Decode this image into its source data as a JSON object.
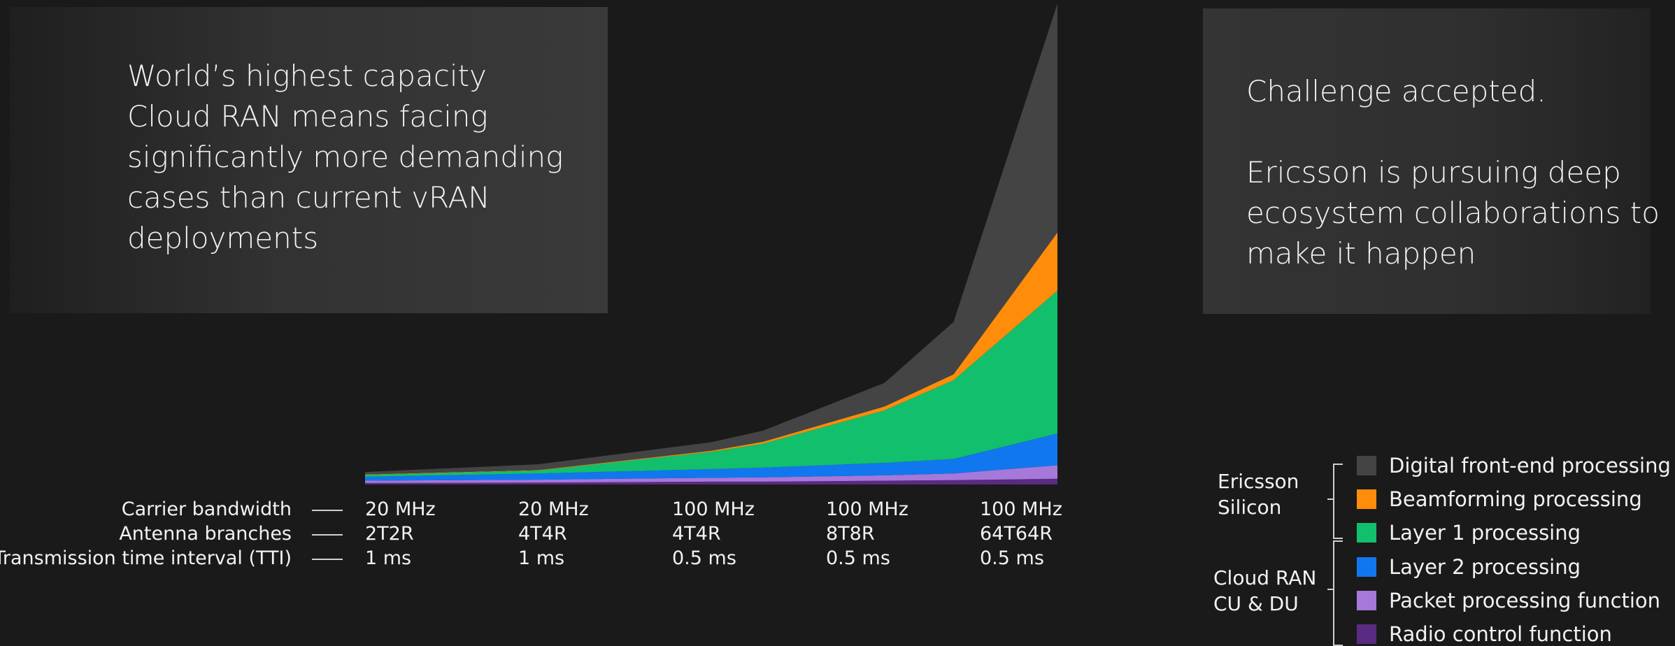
{
  "left_panel": {
    "text": "World’s highest capacity\nCloud RAN means facing\nsignificantly more demanding\ncases than current vRAN\ndeployments"
  },
  "right_panel": {
    "text1": "Challenge accepted.",
    "text2": "Ericsson is pursuing deep\necosystem collaborations to\nmake it happen"
  },
  "table": {
    "rows": [
      {
        "label": "Carrier bandwidth",
        "values": [
          "20 MHz",
          "20 MHz",
          "100 MHz",
          "100 MHz",
          "100 MHz"
        ]
      },
      {
        "label": "Antenna branches",
        "values": [
          "2T2R",
          "4T4R",
          "4T4R",
          "8T8R",
          "64T64R"
        ]
      },
      {
        "label": "Transmission time interval (TTI)",
        "values": [
          "1 ms",
          "1 ms",
          "0.5 ms",
          "0.5 ms",
          "0.5 ms"
        ]
      }
    ]
  },
  "legend": {
    "groups": [
      {
        "label": "Ericsson\nSilicon"
      },
      {
        "label": "Cloud RAN\nCU & DU"
      }
    ],
    "items": [
      {
        "label": "Digital front-end processing",
        "color": "#444444"
      },
      {
        "label": "Beamforming processing",
        "color": "#ff8c0a"
      },
      {
        "label": "Layer 1 processing",
        "color": "#12bf6c"
      },
      {
        "label": "Layer 2 processing",
        "color": "#1177ee"
      },
      {
        "label": "Packet processing function",
        "color": "#a678d9"
      },
      {
        "label": "Radio control function",
        "color": "#5a2b82"
      }
    ]
  },
  "chart_data": {
    "type": "area",
    "stacked": true,
    "categories": [
      "20 MHz / 2T2R / 1 ms",
      "20 MHz / 4T4R / 1 ms",
      "100 MHz / 4T4R / 0.5 ms",
      "100 MHz / 8T8R / 0.5 ms",
      "100 MHz / 64T64R / 0.5 ms"
    ],
    "x": [
      0,
      1,
      2,
      2.3,
      3,
      3.4,
      4
    ],
    "ylim": [
      0,
      100
    ],
    "series": [
      {
        "name": "Radio control function",
        "color": "#5a2b82",
        "values": [
          0.3,
          0.4,
          0.6,
          0.6,
          0.8,
          0.9,
          1.2
        ]
      },
      {
        "name": "Packet processing function",
        "color": "#a678d9",
        "values": [
          0.5,
          0.6,
          0.8,
          0.9,
          1.1,
          1.4,
          2.8
        ]
      },
      {
        "name": "Layer 2 processing",
        "color": "#1177ee",
        "values": [
          0.8,
          1.3,
          1.8,
          2.0,
          2.6,
          3.0,
          6.6
        ]
      },
      {
        "name": "Layer 1 processing",
        "color": "#12bf6c",
        "values": [
          0.4,
          0.6,
          3.6,
          5.0,
          10.9,
          16.4,
          29.7
        ]
      },
      {
        "name": "Beamforming processing",
        "color": "#ff8c0a",
        "values": [
          0.1,
          0.1,
          0.2,
          0.4,
          0.8,
          1.2,
          12.1
        ]
      },
      {
        "name": "Digital front-end processing",
        "color": "#444444",
        "values": [
          0.5,
          1.2,
          1.8,
          2.3,
          4.9,
          10.9,
          47.6
        ]
      }
    ]
  }
}
